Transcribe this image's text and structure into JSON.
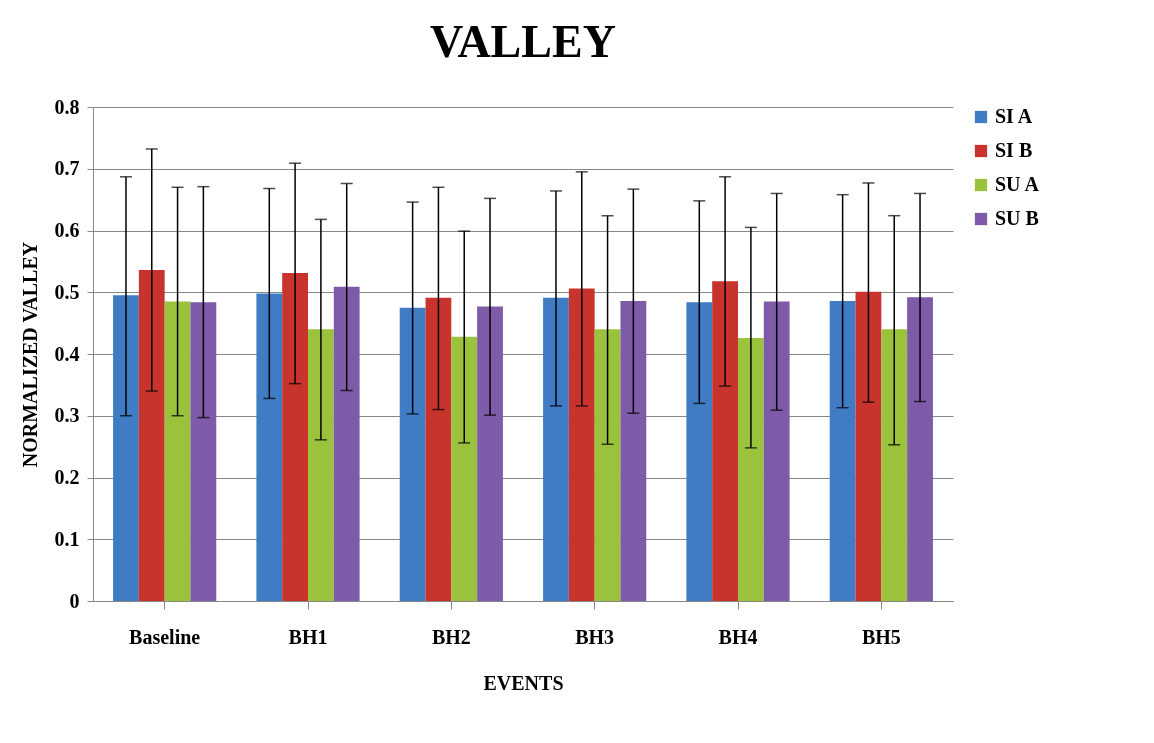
{
  "chart_data": {
    "type": "bar",
    "title": "VALLEY",
    "xlabel": "EVENTS",
    "ylabel": "NORMALIZED VALLEY",
    "categories": [
      "Baseline",
      "BH1",
      "BH2",
      "BH3",
      "BH4",
      "BH5"
    ],
    "series": [
      {
        "name": "SI A",
        "color": "#3f7cc4",
        "values": [
          0.495,
          0.498,
          0.475,
          0.491,
          0.484,
          0.486
        ],
        "errors": [
          [
            0.3,
            0.687
          ],
          [
            0.328,
            0.668
          ],
          [
            0.303,
            0.646
          ],
          [
            0.316,
            0.664
          ],
          [
            0.32,
            0.648
          ],
          [
            0.313,
            0.658
          ]
        ]
      },
      {
        "name": "SI B",
        "color": "#c8332d",
        "values": [
          0.536,
          0.531,
          0.491,
          0.506,
          0.518,
          0.501
        ],
        "errors": [
          [
            0.34,
            0.732
          ],
          [
            0.352,
            0.709
          ],
          [
            0.31,
            0.67
          ],
          [
            0.316,
            0.695
          ],
          [
            0.348,
            0.687
          ],
          [
            0.322,
            0.677
          ]
        ]
      },
      {
        "name": "SU A",
        "color": "#9bc23c",
        "values": [
          0.485,
          0.44,
          0.428,
          0.44,
          0.426,
          0.44
        ],
        "errors": [
          [
            0.3,
            0.67
          ],
          [
            0.261,
            0.618
          ],
          [
            0.256,
            0.599
          ],
          [
            0.254,
            0.624
          ],
          [
            0.248,
            0.605
          ],
          [
            0.253,
            0.624
          ]
        ]
      },
      {
        "name": "SU B",
        "color": "#7e5ba8",
        "values": [
          0.484,
          0.509,
          0.477,
          0.486,
          0.485,
          0.492
        ],
        "errors": [
          [
            0.297,
            0.671
          ],
          [
            0.341,
            0.676
          ],
          [
            0.301,
            0.652
          ],
          [
            0.304,
            0.667
          ],
          [
            0.309,
            0.66
          ],
          [
            0.323,
            0.66
          ]
        ]
      }
    ],
    "ylim": [
      0,
      0.8
    ],
    "yticks": [
      0,
      0.1,
      0.2,
      0.3,
      0.4,
      0.5,
      0.6,
      0.7,
      0.8
    ],
    "grid": "y",
    "legend": "right"
  }
}
